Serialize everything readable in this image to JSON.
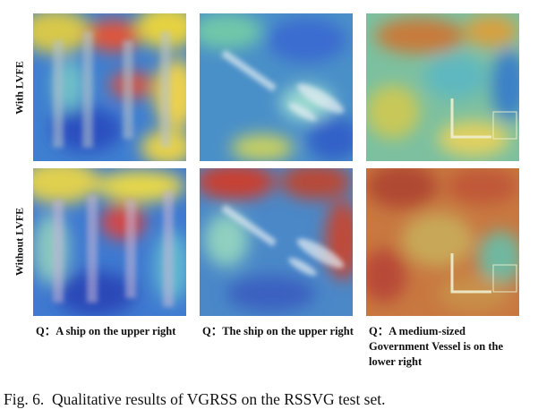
{
  "row_labels": [
    "With LVFE",
    "Without LVFE"
  ],
  "queries": [
    "Q：A ship on the upper right",
    "Q：The ship on the upper right",
    "Q：A medium-sized Government Vessel is on the lower right"
  ],
  "caption": "Fig. 6.  Qualitative results of VGRSS on the RSSVG test set."
}
